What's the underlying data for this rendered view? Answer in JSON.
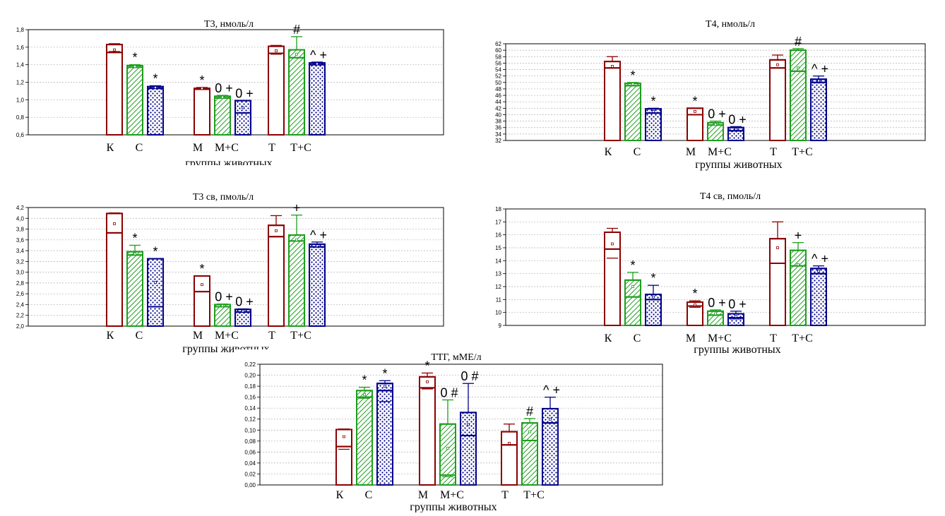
{
  "colors": {
    "red": "#8b0000",
    "green": "#1e9e1e",
    "blue": "#00008b",
    "grid": "#b0b0b0"
  },
  "chart_data": [
    {
      "type": "bar",
      "title": "Т3, нмоль/л",
      "xlabel": "группы животных",
      "categories": [
        "К",
        "С",
        "М",
        "М+С",
        "Т",
        "Т+С"
      ],
      "ylim": [
        0.6,
        1.8
      ],
      "yticks": [
        "0,6",
        "0,8",
        "1,0",
        "1,2",
        "1,4",
        "1,6",
        "1,8"
      ],
      "bars": [
        {
          "group": 0,
          "value": 1.63,
          "mean": 1.57,
          "low": 1.54,
          "err_up": 1.64,
          "err_low": 1.55,
          "color": "red",
          "fill": "open",
          "ann": ""
        },
        {
          "group": 0,
          "value": 1.39,
          "mean": 1.38,
          "low": 1.37,
          "err_up": 1.4,
          "err_low": 1.37,
          "color": "green",
          "fill": "hatch",
          "ann": "*"
        },
        {
          "group": 0,
          "value": 1.15,
          "mean": 1.14,
          "low": 1.13,
          "err_up": 1.16,
          "err_low": 1.13,
          "color": "blue",
          "fill": "dots",
          "ann": "*"
        },
        {
          "group": 1,
          "value": 1.13,
          "mean": 1.13,
          "low": 1.12,
          "err_up": 1.14,
          "err_low": 1.12,
          "color": "red",
          "fill": "open",
          "ann": "*"
        },
        {
          "group": 1,
          "value": 1.04,
          "mean": 1.03,
          "low": 1.02,
          "err_up": 1.05,
          "err_low": 1.02,
          "color": "green",
          "fill": "hatch",
          "ann": "0 +"
        },
        {
          "group": 1,
          "value": 0.99,
          "mean": 0.91,
          "low": 0.85,
          "err_up": 0.99,
          "err_low": 0.85,
          "color": "blue",
          "fill": "dots",
          "ann": "0 +"
        },
        {
          "group": 2,
          "value": 1.61,
          "mean": 1.56,
          "low": 1.53,
          "err_up": 1.62,
          "err_low": 1.52,
          "color": "red",
          "fill": "open",
          "ann": ""
        },
        {
          "group": 2,
          "value": 1.57,
          "mean": 1.52,
          "low": 1.48,
          "err_up": 1.72,
          "err_low": 1.48,
          "color": "green",
          "fill": "hatch",
          "ann": "#"
        },
        {
          "group": 2,
          "value": 1.42,
          "mean": 1.41,
          "low": 1.4,
          "err_up": 1.43,
          "err_low": 1.4,
          "color": "blue",
          "fill": "dots",
          "ann": "^ +"
        }
      ]
    },
    {
      "type": "bar",
      "title": "Т4, нмоль/л",
      "xlabel": "группы животных",
      "categories": [
        "К",
        "С",
        "М",
        "М+С",
        "Т",
        "Т+С"
      ],
      "ylim": [
        32,
        62
      ],
      "yticks": [
        "32",
        "34",
        "36",
        "38",
        "40",
        "42",
        "44",
        "46",
        "48",
        "50",
        "52",
        "54",
        "56",
        "58",
        "60",
        "62"
      ],
      "bars": [
        {
          "group": 0,
          "value": 56.5,
          "mean": 55.0,
          "low": 54.5,
          "err_up": 58.0,
          "err_low": 54.5,
          "color": "red",
          "fill": "open",
          "ann": ""
        },
        {
          "group": 0,
          "value": 49.7,
          "mean": 49.5,
          "low": 49.0,
          "err_up": 50.0,
          "err_low": 49.0,
          "color": "green",
          "fill": "hatch",
          "ann": "*"
        },
        {
          "group": 0,
          "value": 41.8,
          "mean": 41.0,
          "low": 40.5,
          "err_up": 42.0,
          "err_low": 40.5,
          "color": "blue",
          "fill": "dots",
          "ann": "*"
        },
        {
          "group": 1,
          "value": 42.0,
          "mean": 41.0,
          "low": 40.0,
          "err_up": 42.0,
          "err_low": 40.0,
          "color": "red",
          "fill": "open",
          "ann": "*"
        },
        {
          "group": 1,
          "value": 37.5,
          "mean": 37.0,
          "low": 36.8,
          "err_up": 38.0,
          "err_low": 36.8,
          "color": "green",
          "fill": "hatch",
          "ann": "0 +"
        },
        {
          "group": 1,
          "value": 36.0,
          "mean": 35.5,
          "low": 35.0,
          "err_up": 36.3,
          "err_low": 35.0,
          "color": "blue",
          "fill": "dots",
          "ann": "0 +"
        },
        {
          "group": 2,
          "value": 57.0,
          "mean": 55.5,
          "low": 54.5,
          "err_up": 58.5,
          "err_low": 54.5,
          "color": "red",
          "fill": "open",
          "ann": ""
        },
        {
          "group": 2,
          "value": 60.0,
          "mean": 54.5,
          "low": 53.5,
          "err_up": 60.5,
          "err_low": 53.5,
          "color": "green",
          "fill": "hatch",
          "ann": "#"
        },
        {
          "group": 2,
          "value": 51.0,
          "mean": 50.5,
          "low": 50.0,
          "err_up": 52.0,
          "err_low": 50.0,
          "color": "blue",
          "fill": "dots",
          "ann": "^ +"
        }
      ]
    },
    {
      "type": "bar",
      "title": "Т3 св, пмоль/л",
      "xlabel": "группы животных",
      "categories": [
        "К",
        "С",
        "М",
        "М+С",
        "Т",
        "Т+С"
      ],
      "ylim": [
        2.0,
        4.2
      ],
      "yticks": [
        "2,0",
        "2,2",
        "2,4",
        "2,6",
        "2,8",
        "3,0",
        "3,2",
        "3,4",
        "3,6",
        "3,8",
        "4,0",
        "4,2"
      ],
      "bars": [
        {
          "group": 0,
          "value": 4.09,
          "mean": 3.9,
          "low": 3.73,
          "err_up": 4.1,
          "err_low": 3.73,
          "color": "red",
          "fill": "open",
          "ann": ""
        },
        {
          "group": 0,
          "value": 3.38,
          "mean": 3.34,
          "low": 3.32,
          "err_up": 3.5,
          "err_low": 3.32,
          "color": "green",
          "fill": "hatch",
          "ann": "*"
        },
        {
          "group": 0,
          "value": 3.25,
          "mean": 2.81,
          "low": 2.36,
          "err_up": 3.25,
          "err_low": 2.36,
          "color": "blue",
          "fill": "dots",
          "ann": "*"
        },
        {
          "group": 1,
          "value": 2.93,
          "mean": 2.77,
          "low": 2.64,
          "err_up": 2.93,
          "err_low": 2.64,
          "color": "red",
          "fill": "open",
          "ann": "*"
        },
        {
          "group": 1,
          "value": 2.4,
          "mean": 2.38,
          "low": 2.36,
          "err_up": 2.41,
          "err_low": 2.36,
          "color": "green",
          "fill": "hatch",
          "ann": "0 +"
        },
        {
          "group": 1,
          "value": 2.31,
          "mean": 2.28,
          "low": 2.26,
          "err_up": 2.32,
          "err_low": 2.26,
          "color": "blue",
          "fill": "dots",
          "ann": "0 +"
        },
        {
          "group": 2,
          "value": 3.87,
          "mean": 3.77,
          "low": 3.66,
          "err_up": 4.05,
          "err_low": 3.66,
          "color": "red",
          "fill": "open",
          "ann": ""
        },
        {
          "group": 2,
          "value": 3.69,
          "mean": 3.6,
          "low": 3.58,
          "err_up": 4.06,
          "err_low": 3.58,
          "color": "green",
          "fill": "hatch",
          "ann": "+"
        },
        {
          "group": 2,
          "value": 3.52,
          "mean": 3.49,
          "low": 3.47,
          "err_up": 3.56,
          "err_low": 3.47,
          "color": "blue",
          "fill": "dots",
          "ann": "^ +"
        }
      ]
    },
    {
      "type": "bar",
      "title": "Т4 св, пмоль/л",
      "xlabel": "группы животных",
      "categories": [
        "К",
        "С",
        "М",
        "М+С",
        "Т",
        "Т+С"
      ],
      "ylim": [
        9,
        18
      ],
      "yticks": [
        "9",
        "10",
        "11",
        "12",
        "13",
        "14",
        "15",
        "16",
        "17",
        "18"
      ],
      "bars": [
        {
          "group": 0,
          "value": 16.2,
          "mean": 15.3,
          "low": 14.9,
          "err_up": 16.5,
          "err_low": 14.2,
          "color": "red",
          "fill": "open",
          "ann": ""
        },
        {
          "group": 0,
          "value": 12.5,
          "mean": 12.0,
          "low": 11.2,
          "err_up": 13.1,
          "err_low": 11.2,
          "color": "green",
          "fill": "hatch",
          "ann": "*"
        },
        {
          "group": 0,
          "value": 11.4,
          "mean": 11.2,
          "low": 11.0,
          "err_up": 12.1,
          "err_low": 11.0,
          "color": "blue",
          "fill": "dots",
          "ann": "*"
        },
        {
          "group": 1,
          "value": 10.8,
          "mean": 10.6,
          "low": 10.5,
          "err_up": 10.9,
          "err_low": 10.4,
          "color": "red",
          "fill": "open",
          "ann": "*"
        },
        {
          "group": 1,
          "value": 10.1,
          "mean": 9.9,
          "low": 9.8,
          "err_up": 10.2,
          "err_low": 9.8,
          "color": "green",
          "fill": "hatch",
          "ann": "0 +"
        },
        {
          "group": 1,
          "value": 9.9,
          "mean": 9.7,
          "low": 9.6,
          "err_up": 10.1,
          "err_low": 9.5,
          "color": "blue",
          "fill": "dots",
          "ann": "0 +"
        },
        {
          "group": 2,
          "value": 15.7,
          "mean": 15.0,
          "low": 13.8,
          "err_up": 17.0,
          "err_low": 13.8,
          "color": "red",
          "fill": "open",
          "ann": ""
        },
        {
          "group": 2,
          "value": 14.8,
          "mean": 13.7,
          "low": 13.6,
          "err_up": 15.4,
          "err_low": 13.6,
          "color": "green",
          "fill": "hatch",
          "ann": "+"
        },
        {
          "group": 2,
          "value": 13.4,
          "mean": 13.2,
          "low": 13.0,
          "err_up": 13.6,
          "err_low": 13.0,
          "color": "blue",
          "fill": "dots",
          "ann": "^ +"
        }
      ]
    },
    {
      "type": "bar",
      "title": "ТТГ, мМЕ/л",
      "xlabel": "группы животных",
      "categories": [
        "К",
        "С",
        "М",
        "М+С",
        "Т",
        "Т+С"
      ],
      "ylim": [
        0.0,
        0.22
      ],
      "yticks": [
        "0,00",
        "0,02",
        "0,04",
        "0,06",
        "0,08",
        "0,10",
        "0,12",
        "0,14",
        "0,16",
        "0,18",
        "0,20",
        "0,22"
      ],
      "bars": [
        {
          "group": 0,
          "value": 0.101,
          "mean": 0.088,
          "low": 0.07,
          "err_up": 0.102,
          "err_low": 0.065,
          "color": "red",
          "fill": "open",
          "ann": ""
        },
        {
          "group": 0,
          "value": 0.172,
          "mean": 0.165,
          "low": 0.16,
          "err_up": 0.178,
          "err_low": 0.158,
          "color": "green",
          "fill": "hatch",
          "ann": "*"
        },
        {
          "group": 0,
          "value": 0.185,
          "mean": 0.18,
          "low": 0.172,
          "err_up": 0.19,
          "err_low": 0.152,
          "color": "blue",
          "fill": "dots",
          "ann": "*"
        },
        {
          "group": 1,
          "value": 0.197,
          "mean": 0.188,
          "low": 0.177,
          "err_up": 0.204,
          "err_low": 0.175,
          "color": "red",
          "fill": "open",
          "ann": "*"
        },
        {
          "group": 1,
          "value": 0.111,
          "mean": 0.067,
          "low": 0.018,
          "err_up": 0.155,
          "err_low": 0.015,
          "color": "green",
          "fill": "hatch",
          "ann": "0 #"
        },
        {
          "group": 1,
          "value": 0.132,
          "mean": 0.11,
          "low": 0.09,
          "err_up": 0.185,
          "err_low": 0.09,
          "color": "blue",
          "fill": "dots",
          "ann": "0 #"
        },
        {
          "group": 2,
          "value": 0.097,
          "mean": 0.076,
          "low": 0.073,
          "err_up": 0.111,
          "err_low": 0.073,
          "color": "red",
          "fill": "open",
          "ann": ""
        },
        {
          "group": 2,
          "value": 0.113,
          "mean": 0.097,
          "low": 0.081,
          "err_up": 0.121,
          "err_low": 0.081,
          "color": "green",
          "fill": "hatch",
          "ann": "#"
        },
        {
          "group": 2,
          "value": 0.139,
          "mean": 0.12,
          "low": 0.113,
          "err_up": 0.16,
          "err_low": 0.113,
          "color": "blue",
          "fill": "dots",
          "ann": "^ +"
        }
      ]
    }
  ]
}
